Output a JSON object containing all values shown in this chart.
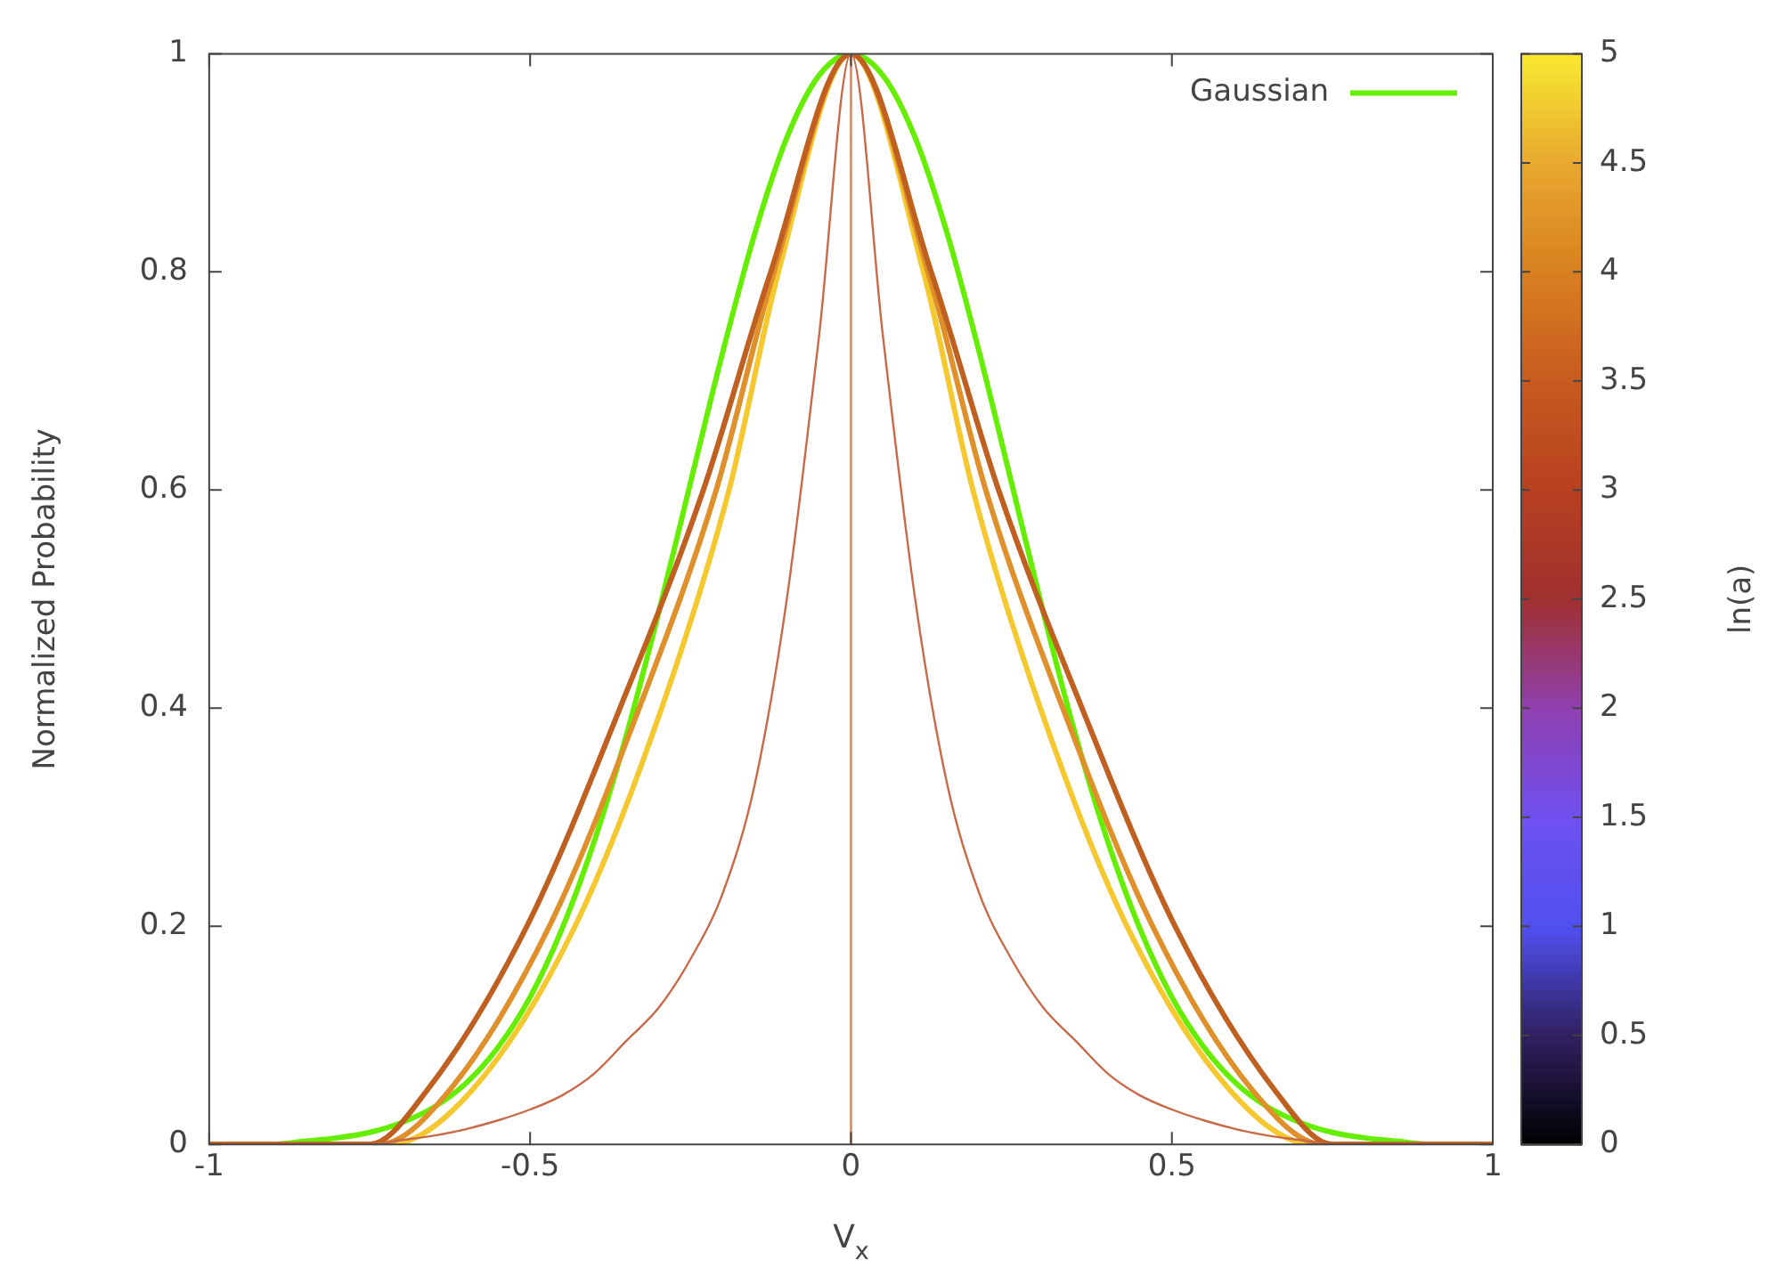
{
  "chart_data": {
    "type": "line",
    "xlabel": "V$_{x}$",
    "ylabel": "Normalized Probability",
    "clabel": "ln(a)",
    "xlim": [
      -1,
      1
    ],
    "xticks": [
      -1,
      -0.5,
      0,
      0.5,
      1
    ],
    "ylim": [
      0,
      1
    ],
    "yticks": [
      0,
      0.2,
      0.4,
      0.6,
      0.8,
      1
    ],
    "clim": [
      0,
      5
    ],
    "cticks": [
      0,
      0.5,
      1,
      1.5,
      2,
      2.5,
      3,
      3.5,
      4,
      4.5,
      5
    ],
    "grid": false,
    "legend": "top right",
    "marker": "none",
    "series": [
      {
        "color": "#d08060",
        "x": [
          0,
          0
        ],
        "values": [
          0,
          1
        ]
      },
      {
        "color": "#c86a48",
        "x": [
          -1,
          -0.95,
          -0.9,
          -0.85,
          -0.8,
          -0.75,
          -0.7,
          -0.65,
          -0.6,
          -0.55,
          -0.5,
          -0.45,
          -0.4,
          -0.35,
          -0.3,
          -0.25,
          -0.2,
          -0.15,
          -0.1,
          -0.05,
          0,
          0.05,
          0.1,
          0.15,
          0.2,
          0.25,
          0.3,
          0.35,
          0.4,
          0.45,
          0.5,
          0.55,
          0.6,
          0.65,
          0.7,
          0.75,
          0.8,
          0.85,
          0.9,
          0.95,
          1
        ],
        "values": [
          0,
          0,
          0,
          0,
          0,
          0,
          0.004,
          0.008,
          0.014,
          0.022,
          0.032,
          0.045,
          0.065,
          0.095,
          0.125,
          0.17,
          0.23,
          0.33,
          0.5,
          0.74,
          1,
          0.74,
          0.5,
          0.33,
          0.23,
          0.17,
          0.125,
          0.095,
          0.065,
          0.045,
          0.032,
          0.022,
          0.014,
          0.008,
          0.004,
          0,
          0,
          0,
          0,
          0,
          0
        ]
      },
      {
        "color": "#c06020",
        "x": [
          -1,
          -0.75,
          -0.66,
          -0.505,
          -0.36,
          -0.23,
          -0.125,
          0,
          0.125,
          0.23,
          0.36,
          0.505,
          0.66,
          0.75,
          1
        ],
        "values": [
          0,
          0,
          0.05,
          0.2,
          0.4,
          0.6,
          0.8,
          1,
          0.8,
          0.6,
          0.4,
          0.2,
          0.05,
          0,
          0
        ]
      },
      {
        "color": "#e0902a",
        "x": [
          -1,
          -0.735,
          -0.625,
          -0.47,
          -0.33,
          -0.21,
          -0.12,
          0,
          0.12,
          0.21,
          0.33,
          0.47,
          0.625,
          0.735,
          1
        ],
        "values": [
          0,
          0,
          0.05,
          0.2,
          0.4,
          0.6,
          0.8,
          1,
          0.8,
          0.6,
          0.4,
          0.2,
          0.05,
          0,
          0
        ]
      },
      {
        "color": "#f5c830",
        "x": [
          -1,
          -0.72,
          -0.59,
          -0.43,
          -0.295,
          -0.19,
          -0.113,
          0,
          0.113,
          0.19,
          0.295,
          0.43,
          0.59,
          0.72,
          1
        ],
        "values": [
          0,
          0,
          0.05,
          0.2,
          0.4,
          0.6,
          0.8,
          1,
          0.8,
          0.6,
          0.4,
          0.2,
          0.05,
          0,
          0
        ]
      },
      {
        "name": "Gaussian",
        "color": "#66ee00",
        "x": [
          -1,
          -0.95,
          -0.9,
          -0.85,
          -0.8,
          -0.75,
          -0.7,
          -0.65,
          -0.6,
          -0.55,
          -0.5,
          -0.45,
          -0.4,
          -0.35,
          -0.3,
          -0.25,
          -0.2,
          -0.15,
          -0.1,
          -0.05,
          0,
          0.05,
          0.1,
          0.15,
          0.2,
          0.25,
          0.3,
          0.35,
          0.4,
          0.45,
          0.5,
          0.55,
          0.6,
          0.65,
          0.7,
          0.75,
          0.8,
          0.85,
          0.9,
          0.95,
          1
        ],
        "values": [
          0,
          0,
          0,
          0.003,
          0.006,
          0.011,
          0.02,
          0.034,
          0.056,
          0.089,
          0.135,
          0.198,
          0.278,
          0.375,
          0.487,
          0.607,
          0.726,
          0.835,
          0.923,
          0.98,
          1,
          0.98,
          0.923,
          0.835,
          0.726,
          0.607,
          0.487,
          0.375,
          0.278,
          0.198,
          0.135,
          0.089,
          0.056,
          0.034,
          0.02,
          0.011,
          0.006,
          0.003,
          0,
          0,
          0
        ]
      }
    ]
  }
}
